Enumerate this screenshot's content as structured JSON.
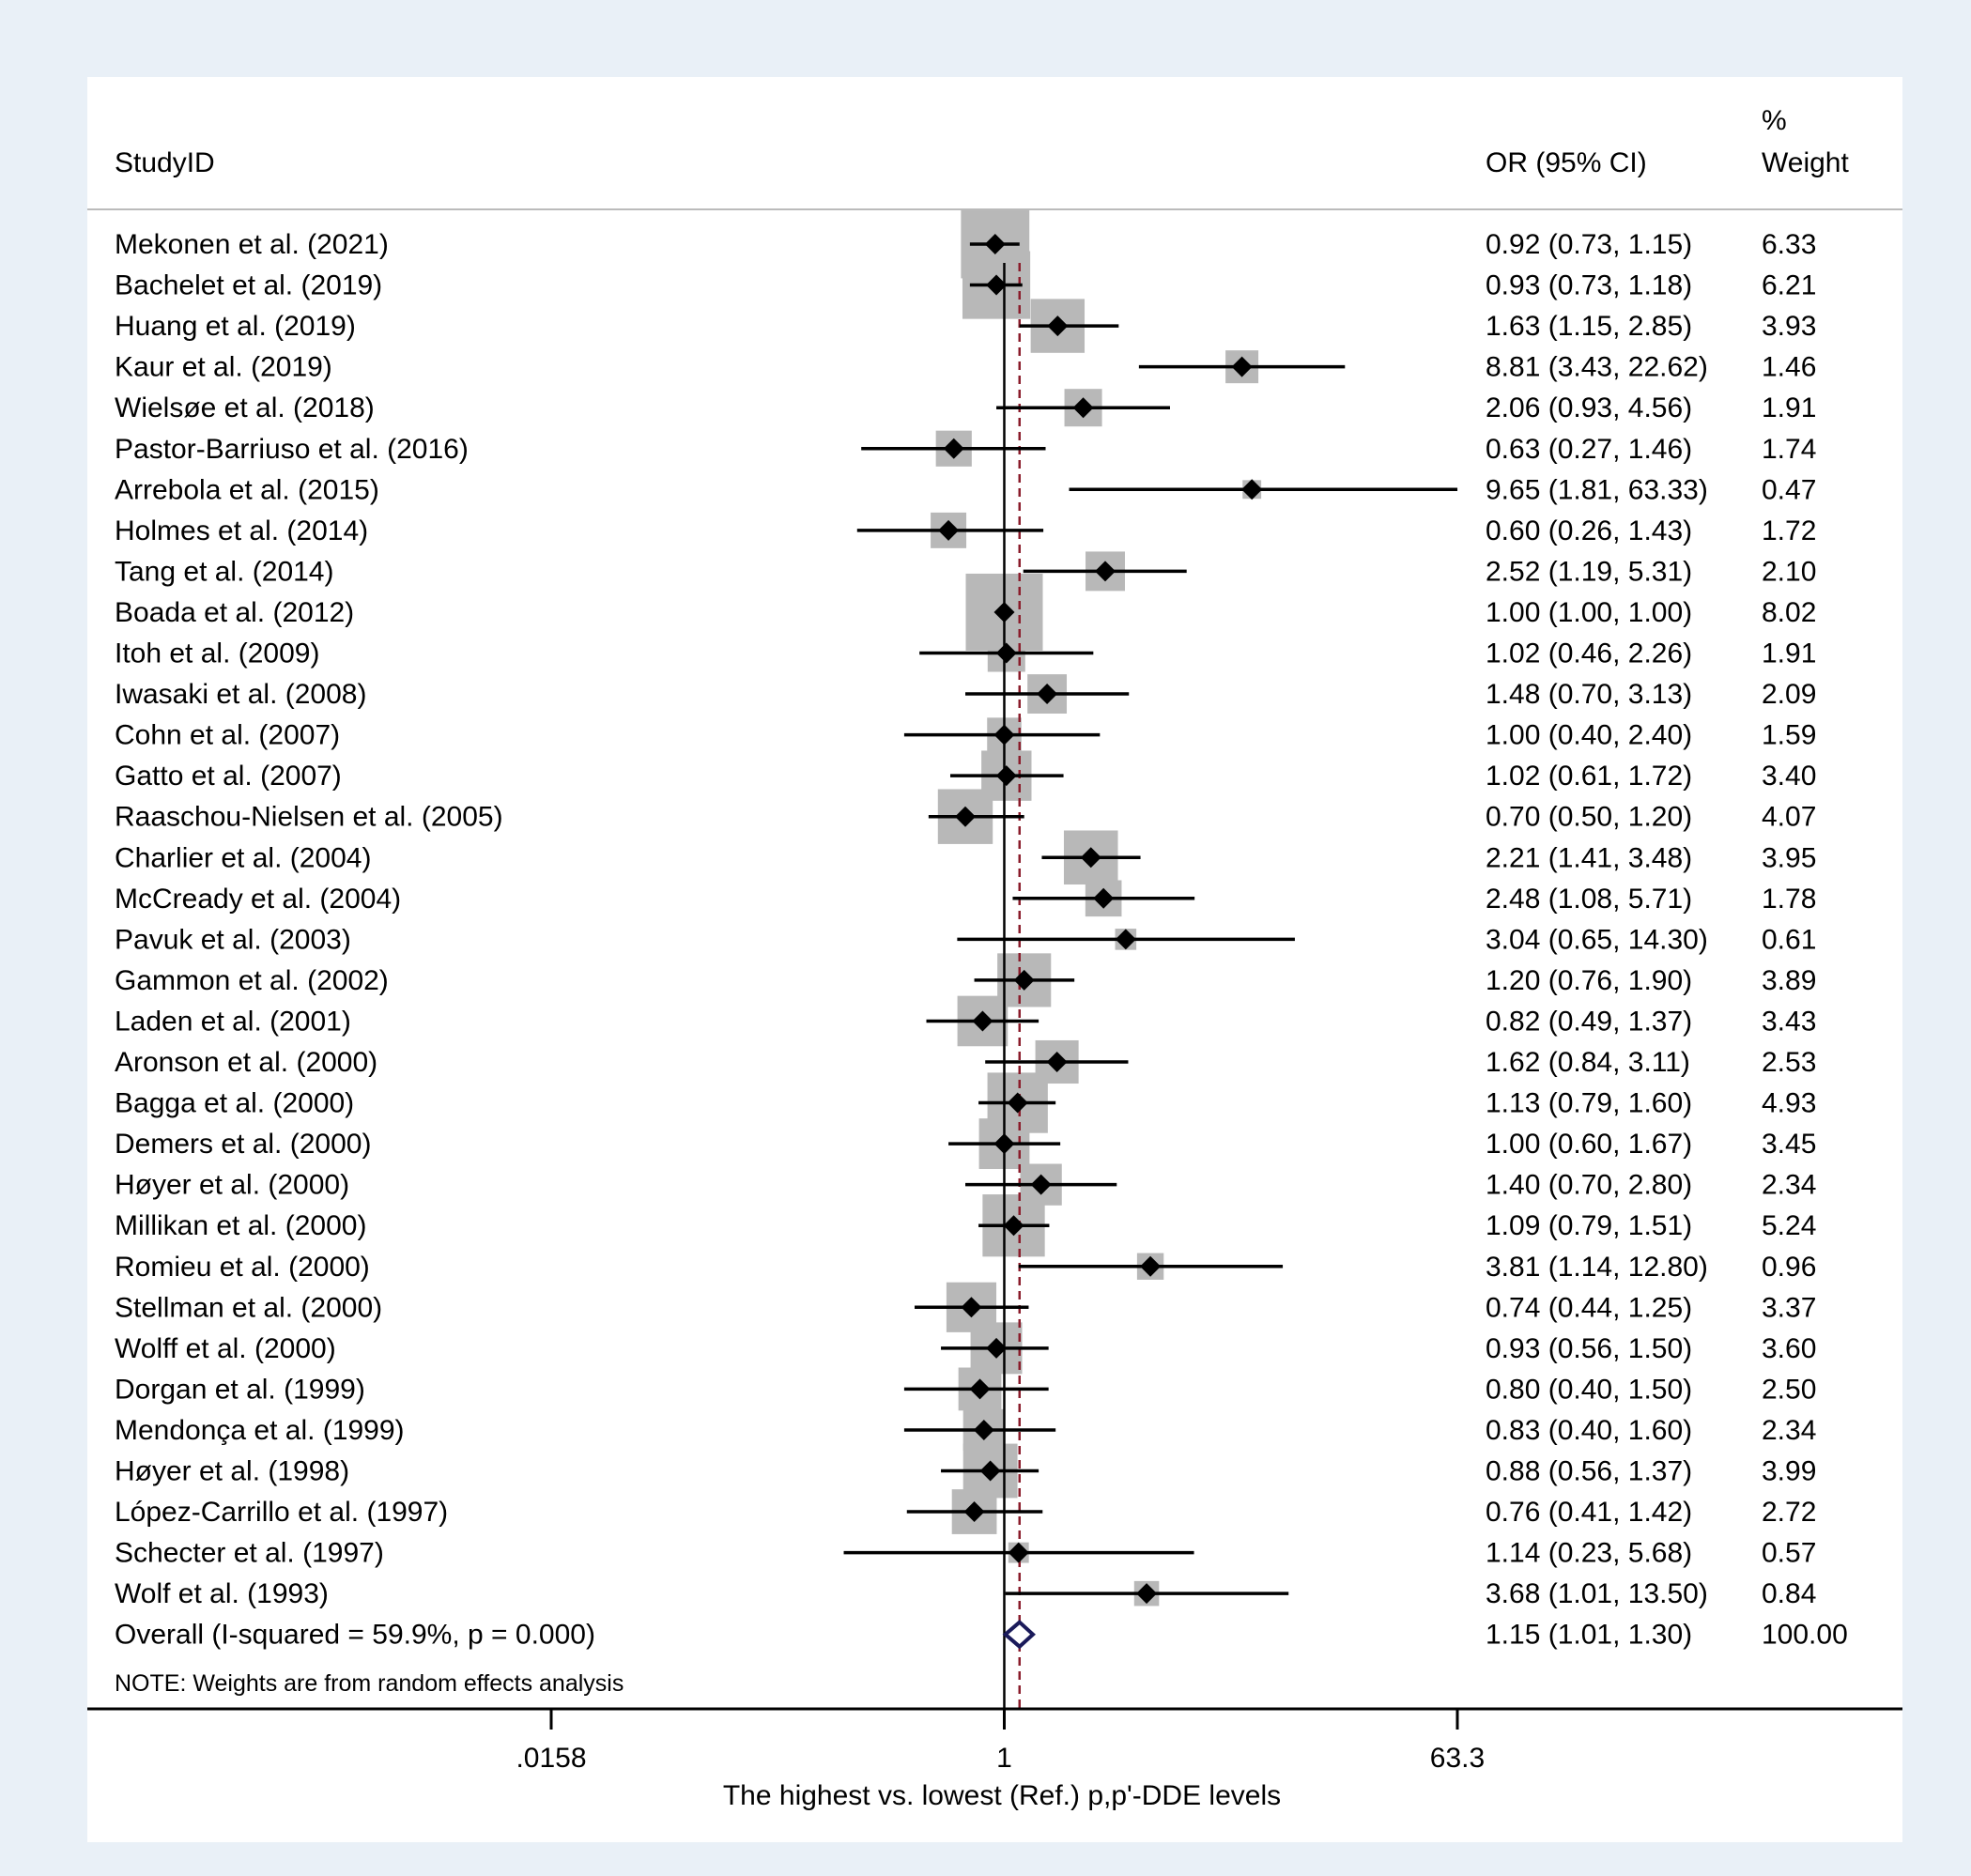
{
  "chart_data": {
    "type": "forest",
    "headers": {
      "study": "StudyID",
      "estimate": "OR (95% CI)",
      "weight_line1": "%",
      "weight_line2": "Weight"
    },
    "x_scale": "log",
    "xlim": [
      0.0158,
      63.3
    ],
    "xticks": [
      0.0158,
      1,
      63.3
    ],
    "xtick_labels": [
      ".0158",
      "1",
      "63.3"
    ],
    "xlabel": "The highest vs. lowest (Ref.) p,p'-DDE levels",
    "reference_line": 1,
    "overall_line": 1.15,
    "note": "NOTE: Weights are from random effects analysis",
    "colors": {
      "background": "#e9f0f7",
      "panel": "#ffffff",
      "weight_box": "#b8b8b8",
      "marker": "#000000",
      "overall_diamond": "#1a1a5a",
      "overall_line": "#8a1c2b",
      "header_rule": "#bbbbbb"
    },
    "studies": [
      {
        "label": "Mekonen et al. (2021)",
        "or": 0.92,
        "lo": 0.73,
        "hi": 1.15,
        "ci_text": "0.92 (0.73, 1.15)",
        "weight": 6.33,
        "weight_text": "6.33"
      },
      {
        "label": "Bachelet et al. (2019)",
        "or": 0.93,
        "lo": 0.73,
        "hi": 1.18,
        "ci_text": "0.93 (0.73, 1.18)",
        "weight": 6.21,
        "weight_text": "6.21"
      },
      {
        "label": "Huang et al. (2019)",
        "or": 1.63,
        "lo": 1.15,
        "hi": 2.85,
        "ci_text": "1.63 (1.15, 2.85)",
        "weight": 3.93,
        "weight_text": "3.93"
      },
      {
        "label": "Kaur et al. (2019)",
        "or": 8.81,
        "lo": 3.43,
        "hi": 22.62,
        "ci_text": "8.81 (3.43, 22.62)",
        "weight": 1.46,
        "weight_text": "1.46"
      },
      {
        "label": "Wielsøe et al. (2018)",
        "or": 2.06,
        "lo": 0.93,
        "hi": 4.56,
        "ci_text": "2.06 (0.93, 4.56)",
        "weight": 1.91,
        "weight_text": "1.91"
      },
      {
        "label": "Pastor-Barriuso et al. (2016)",
        "or": 0.63,
        "lo": 0.27,
        "hi": 1.46,
        "ci_text": "0.63 (0.27, 1.46)",
        "weight": 1.74,
        "weight_text": "1.74"
      },
      {
        "label": "Arrebola et al. (2015)",
        "or": 9.65,
        "lo": 1.81,
        "hi": 63.33,
        "ci_text": "9.65 (1.81, 63.33)",
        "weight": 0.47,
        "weight_text": "0.47"
      },
      {
        "label": "Holmes et al. (2014)",
        "or": 0.6,
        "lo": 0.26,
        "hi": 1.43,
        "ci_text": "0.60 (0.26, 1.43)",
        "weight": 1.72,
        "weight_text": "1.72"
      },
      {
        "label": "Tang et al. (2014)",
        "or": 2.52,
        "lo": 1.19,
        "hi": 5.31,
        "ci_text": "2.52 (1.19, 5.31)",
        "weight": 2.1,
        "weight_text": "2.10"
      },
      {
        "label": "Boada et al. (2012)",
        "or": 1.0,
        "lo": 1.0,
        "hi": 1.0,
        "ci_text": "1.00 (1.00, 1.00)",
        "weight": 8.02,
        "weight_text": "8.02"
      },
      {
        "label": "Itoh et al. (2009)",
        "or": 1.02,
        "lo": 0.46,
        "hi": 2.26,
        "ci_text": "1.02 (0.46, 2.26)",
        "weight": 1.91,
        "weight_text": "1.91"
      },
      {
        "label": "Iwasaki et al. (2008)",
        "or": 1.48,
        "lo": 0.7,
        "hi": 3.13,
        "ci_text": "1.48 (0.70, 3.13)",
        "weight": 2.09,
        "weight_text": "2.09"
      },
      {
        "label": "Cohn et al. (2007)",
        "or": 1.0,
        "lo": 0.4,
        "hi": 2.4,
        "ci_text": "1.00 (0.40, 2.40)",
        "weight": 1.59,
        "weight_text": "1.59"
      },
      {
        "label": "Gatto et al. (2007)",
        "or": 1.02,
        "lo": 0.61,
        "hi": 1.72,
        "ci_text": "1.02 (0.61, 1.72)",
        "weight": 3.4,
        "weight_text": "3.40"
      },
      {
        "label": "Raaschou-Nielsen et al. (2005)",
        "or": 0.7,
        "lo": 0.5,
        "hi": 1.2,
        "ci_text": "0.70 (0.50, 1.20)",
        "weight": 4.07,
        "weight_text": "4.07"
      },
      {
        "label": "Charlier et al. (2004)",
        "or": 2.21,
        "lo": 1.41,
        "hi": 3.48,
        "ci_text": "2.21 (1.41, 3.48)",
        "weight": 3.95,
        "weight_text": "3.95"
      },
      {
        "label": "McCready et al. (2004)",
        "or": 2.48,
        "lo": 1.08,
        "hi": 5.71,
        "ci_text": "2.48 (1.08, 5.71)",
        "weight": 1.78,
        "weight_text": "1.78"
      },
      {
        "label": "Pavuk et al. (2003)",
        "or": 3.04,
        "lo": 0.65,
        "hi": 14.3,
        "ci_text": "3.04 (0.65, 14.30)",
        "weight": 0.61,
        "weight_text": "0.61"
      },
      {
        "label": "Gammon et al. (2002)",
        "or": 1.2,
        "lo": 0.76,
        "hi": 1.9,
        "ci_text": "1.20 (0.76, 1.90)",
        "weight": 3.89,
        "weight_text": "3.89"
      },
      {
        "label": "Laden et al. (2001)",
        "or": 0.82,
        "lo": 0.49,
        "hi": 1.37,
        "ci_text": "0.82 (0.49, 1.37)",
        "weight": 3.43,
        "weight_text": "3.43"
      },
      {
        "label": "Aronson et al. (2000)",
        "or": 1.62,
        "lo": 0.84,
        "hi": 3.11,
        "ci_text": "1.62 (0.84, 3.11)",
        "weight": 2.53,
        "weight_text": "2.53"
      },
      {
        "label": "Bagga et al. (2000)",
        "or": 1.13,
        "lo": 0.79,
        "hi": 1.6,
        "ci_text": "1.13 (0.79, 1.60)",
        "weight": 4.93,
        "weight_text": "4.93"
      },
      {
        "label": "Demers et al. (2000)",
        "or": 1.0,
        "lo": 0.6,
        "hi": 1.67,
        "ci_text": "1.00 (0.60, 1.67)",
        "weight": 3.45,
        "weight_text": "3.45"
      },
      {
        "label": "Høyer et al. (2000)",
        "or": 1.4,
        "lo": 0.7,
        "hi": 2.8,
        "ci_text": "1.40 (0.70, 2.80)",
        "weight": 2.34,
        "weight_text": "2.34"
      },
      {
        "label": "Millikan et al. (2000)",
        "or": 1.09,
        "lo": 0.79,
        "hi": 1.51,
        "ci_text": "1.09 (0.79, 1.51)",
        "weight": 5.24,
        "weight_text": "5.24"
      },
      {
        "label": "Romieu et al. (2000)",
        "or": 3.81,
        "lo": 1.14,
        "hi": 12.8,
        "ci_text": "3.81 (1.14, 12.80)",
        "weight": 0.96,
        "weight_text": "0.96"
      },
      {
        "label": "Stellman et al. (2000)",
        "or": 0.74,
        "lo": 0.44,
        "hi": 1.25,
        "ci_text": "0.74 (0.44, 1.25)",
        "weight": 3.37,
        "weight_text": "3.37"
      },
      {
        "label": "Wolff et al. (2000)",
        "or": 0.93,
        "lo": 0.56,
        "hi": 1.5,
        "ci_text": "0.93 (0.56, 1.50)",
        "weight": 3.6,
        "weight_text": "3.60"
      },
      {
        "label": "Dorgan et al. (1999)",
        "or": 0.8,
        "lo": 0.4,
        "hi": 1.5,
        "ci_text": "0.80 (0.40, 1.50)",
        "weight": 2.5,
        "weight_text": "2.50"
      },
      {
        "label": "Mendonça  et al. (1999)",
        "or": 0.83,
        "lo": 0.4,
        "hi": 1.6,
        "ci_text": "0.83 (0.40, 1.60)",
        "weight": 2.34,
        "weight_text": "2.34"
      },
      {
        "label": "Høyer et al. (1998)",
        "or": 0.88,
        "lo": 0.56,
        "hi": 1.37,
        "ci_text": "0.88 (0.56, 1.37)",
        "weight": 3.99,
        "weight_text": "3.99"
      },
      {
        "label": "López-Carrillo et al. (1997)",
        "or": 0.76,
        "lo": 0.41,
        "hi": 1.42,
        "ci_text": "0.76 (0.41, 1.42)",
        "weight": 2.72,
        "weight_text": "2.72"
      },
      {
        "label": "Schecter et al. (1997)",
        "or": 1.14,
        "lo": 0.23,
        "hi": 5.68,
        "ci_text": "1.14 (0.23, 5.68)",
        "weight": 0.57,
        "weight_text": "0.57"
      },
      {
        "label": "Wolf et al. (1993)",
        "or": 3.68,
        "lo": 1.01,
        "hi": 13.5,
        "ci_text": "3.68 (1.01, 13.50)",
        "weight": 0.84,
        "weight_text": "0.84"
      }
    ],
    "overall": {
      "label": "Overall  (I-squared = 59.9%, p = 0.000)",
      "or": 1.15,
      "lo": 1.01,
      "hi": 1.3,
      "ci_text": "1.15 (1.01, 1.30)",
      "weight_text": "100.00"
    }
  }
}
